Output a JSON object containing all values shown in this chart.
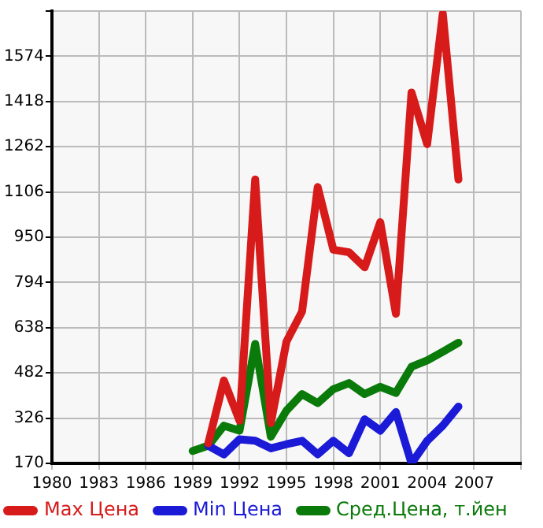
{
  "chart_data": {
    "type": "line",
    "x": [
      1989,
      1990,
      1991,
      1992,
      1993,
      1994,
      1995,
      1996,
      1997,
      1998,
      1999,
      2000,
      2001,
      2002,
      2003,
      2004,
      2005,
      2006
    ],
    "series": [
      {
        "name": "Max Цена",
        "color": "#d71a1a",
        "values": [
          null,
          239,
          456,
          317,
          1149,
          309,
          590,
          694,
          1123,
          907,
          898,
          846,
          1002,
          686,
          1449,
          1271,
          1721,
          1149
        ]
      },
      {
        "name": "Min Цена",
        "color": "#1a1ad7",
        "values": [
          null,
          231,
          201,
          253,
          248,
          222,
          236,
          248,
          201,
          248,
          205,
          322,
          283,
          347,
          170,
          248,
          300,
          366
        ]
      },
      {
        "name": "Сред.Цена, т.йен",
        "color": "#0a7a0a",
        "values": [
          213,
          231,
          300,
          283,
          582,
          262,
          352,
          409,
          378,
          426,
          447,
          409,
          434,
          413,
          503,
          525,
          555,
          586
        ]
      }
    ],
    "xlim": [
      1980,
      2010
    ],
    "xticks": [
      1980,
      1983,
      1986,
      1989,
      1992,
      1995,
      1998,
      2001,
      2004,
      2007,
      {
        "value": 2010,
        "label": null
      }
    ],
    "ylim": [
      170,
      1730
    ],
    "yticks": [
      170,
      326,
      482,
      638,
      794,
      950,
      1106,
      1262,
      1418,
      1574,
      {
        "value": 1730,
        "label": null
      }
    ],
    "grid": true,
    "legend": "bottom",
    "marker": "none",
    "line_style": "solid"
  }
}
